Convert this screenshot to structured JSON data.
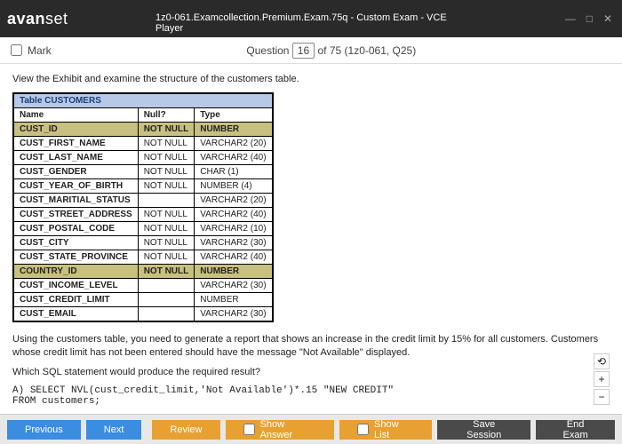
{
  "titlebar": {
    "logo_part1": "avan",
    "logo_part2": "set",
    "title": "1z0-061.Examcollection.Premium.Exam.75q - Custom Exam - VCE Player",
    "min": "—",
    "max": "□",
    "close": "✕"
  },
  "questionbar": {
    "mark": "Mark",
    "question_label": "Question",
    "current": "16",
    "total_suffix": " of 75 (1z0-061, Q25)"
  },
  "content": {
    "intro": "View the Exhibit and examine the structure of the customers table.",
    "table_title": "Table CUSTOMERS",
    "cols": [
      "Name",
      "Null?",
      "Type"
    ],
    "rows": [
      {
        "name": "CUST_ID",
        "null": "NOT NULL",
        "type": "NUMBER",
        "pk": true
      },
      {
        "name": "CUST_FIRST_NAME",
        "null": "NOT NULL",
        "type": "VARCHAR2 (20)"
      },
      {
        "name": "CUST_LAST_NAME",
        "null": "NOT NULL",
        "type": "VARCHAR2 (40)"
      },
      {
        "name": "CUST_GENDER",
        "null": "NOT NULL",
        "type": "CHAR (1)"
      },
      {
        "name": "CUST_YEAR_OF_BIRTH",
        "null": "NOT NULL",
        "type": "NUMBER (4)"
      },
      {
        "name": "CUST_MARITIAL_STATUS",
        "null": "",
        "type": "VARCHAR2 (20)"
      },
      {
        "name": "CUST_STREET_ADDRESS",
        "null": "NOT NULL",
        "type": "VARCHAR2 (40)"
      },
      {
        "name": "CUST_POSTAL_CODE",
        "null": "NOT NULL",
        "type": "VARCHAR2 (10)"
      },
      {
        "name": "CUST_CITY",
        "null": "NOT NULL",
        "type": "VARCHAR2 (30)"
      },
      {
        "name": "CUST_STATE_PROVINCE",
        "null": "NOT NULL",
        "type": "VARCHAR2 (40)"
      },
      {
        "name": "COUNTRY_ID",
        "null": "NOT NULL",
        "type": "NUMBER",
        "pk": true
      },
      {
        "name": "CUST_INCOME_LEVEL",
        "null": "",
        "type": "VARCHAR2 (30)"
      },
      {
        "name": "CUST_CREDIT_LIMIT",
        "null": "",
        "type": "NUMBER"
      },
      {
        "name": "CUST_EMAIL",
        "null": "",
        "type": "VARCHAR2 (30)"
      }
    ],
    "para2": "Using the customers table, you need to generate a report that shows an increase in the credit limit by 15% for all customers. Customers whose credit limit has not been entered should have the message \"Not Available\" displayed.",
    "para3": "Which SQL statement would produce the required result?",
    "optA_label": "A) ",
    "optA_line1": "SELECT NVL(cust_credit_limit,'Not Available')*.15 \"NEW CREDIT\"",
    "optA_line2": "   FROM customers;"
  },
  "zoom": {
    "reset": "⟲",
    "in": "+",
    "out": "−"
  },
  "buttons": {
    "prev": "Previous",
    "next": "Next",
    "review": "Review",
    "show_answer": "Show Answer",
    "show_list": "Show List",
    "save": "Save Session",
    "end": "End Exam"
  }
}
